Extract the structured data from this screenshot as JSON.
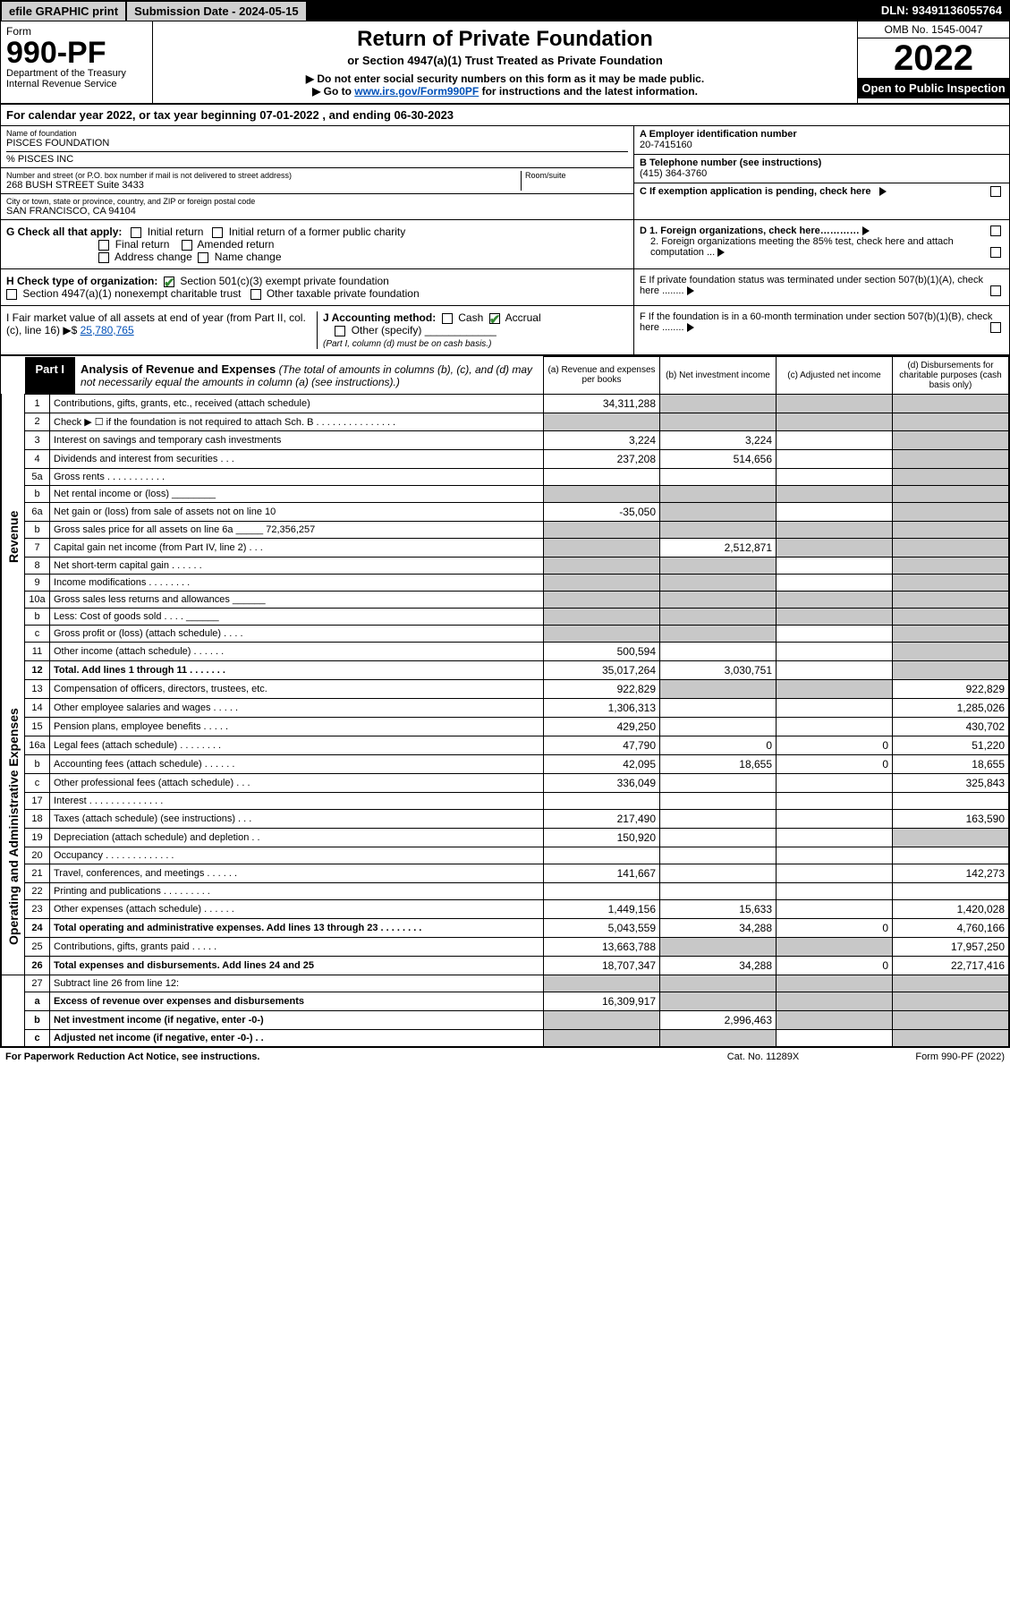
{
  "top": {
    "efile": "efile GRAPHIC print",
    "submission": "Submission Date - 2024-05-15",
    "dln": "DLN: 93491136055764"
  },
  "header": {
    "form_label": "Form",
    "form_number": "990-PF",
    "dept1": "Department of the Treasury",
    "dept2": "Internal Revenue Service",
    "title": "Return of Private Foundation",
    "subtitle": "or Section 4947(a)(1) Trust Treated as Private Foundation",
    "note1": "▶ Do not enter social security numbers on this form as it may be made public.",
    "note2_pre": "▶ Go to ",
    "note2_link": "www.irs.gov/Form990PF",
    "note2_post": " for instructions and the latest information.",
    "omb": "OMB No. 1545-0047",
    "year": "2022",
    "inspect": "Open to Public Inspection"
  },
  "cal": {
    "text1": "For calendar year 2022, or tax year beginning ",
    "begin": "07-01-2022",
    "text2": " , and ending ",
    "end": "06-30-2023"
  },
  "id": {
    "name_lbl": "Name of foundation",
    "name": "PISCES FOUNDATION",
    "care": "% PISCES INC",
    "addr_lbl": "Number and street (or P.O. box number if mail is not delivered to street address)",
    "addr": "268 BUSH STREET Suite 3433",
    "room_lbl": "Room/suite",
    "city_lbl": "City or town, state or province, country, and ZIP or foreign postal code",
    "city": "SAN FRANCISCO, CA  94104",
    "ein_lbl": "A Employer identification number",
    "ein": "20-7415160",
    "tel_lbl": "B Telephone number (see instructions)",
    "tel": "(415) 364-3760",
    "c_lbl": "C If exemption application is pending, check here"
  },
  "g": {
    "label": "G Check all that apply:",
    "o1": "Initial return",
    "o2": "Initial return of a former public charity",
    "o3": "Final return",
    "o4": "Amended return",
    "o5": "Address change",
    "o6": "Name change"
  },
  "d": {
    "d1": "D 1. Foreign organizations, check here…………",
    "d2": "2. Foreign organizations meeting the 85% test, check here and attach computation ..."
  },
  "h": {
    "label": "H Check type of organization:",
    "o1": "Section 501(c)(3) exempt private foundation",
    "o2": "Section 4947(a)(1) nonexempt charitable trust",
    "o3": "Other taxable private foundation"
  },
  "e": {
    "text": "E  If private foundation status was terminated under section 507(b)(1)(A), check here ........"
  },
  "i": {
    "label": "I Fair market value of all assets at end of year (from Part II, col. (c), line 16) ▶$ ",
    "value": "25,780,765"
  },
  "j": {
    "label": "J Accounting method:",
    "cash": "Cash",
    "accrual": "Accrual",
    "other": "Other (specify)",
    "note": "(Part I, column (d) must be on cash basis.)"
  },
  "f": {
    "text": "F  If the foundation is in a 60-month termination under section 507(b)(1)(B), check here ........"
  },
  "part1": {
    "tag": "Part I",
    "title": "Analysis of Revenue and Expenses",
    "paren": " (The total of amounts in columns (b), (c), and (d) may not necessarily equal the amounts in column (a) (see instructions).)",
    "col_a": "(a) Revenue and expenses per books",
    "col_b": "(b) Net investment income",
    "col_c": "(c) Adjusted net income",
    "col_d": "(d) Disbursements for charitable purposes (cash basis only)"
  },
  "side": {
    "rev": "Revenue",
    "exp": "Operating and Administrative Expenses"
  },
  "rows": [
    {
      "n": "1",
      "d": "Contributions, gifts, grants, etc., received (attach schedule)",
      "a": "34,311,288",
      "b_grey": true,
      "c_grey": true,
      "d_grey": true
    },
    {
      "n": "2",
      "d": "Check ▶ ☐ if the foundation is not required to attach Sch. B  .  .  .  .  .  .  .  .  .  .  .  .  .  .  .",
      "a_grey": true,
      "b_grey": true,
      "c_grey": true,
      "d_grey": true
    },
    {
      "n": "3",
      "d": "Interest on savings and temporary cash investments",
      "a": "3,224",
      "b": "3,224",
      "d_grey": true
    },
    {
      "n": "4",
      "d": "Dividends and interest from securities   .   .   .",
      "a": "237,208",
      "b": "514,656",
      "d_grey": true
    },
    {
      "n": "5a",
      "d": "Gross rents   .    .    .    .    .    .    .    .    .    .    .",
      "d_grey": true
    },
    {
      "n": "b",
      "d": "Net rental income or (loss) ________",
      "a_grey": true,
      "b_grey": true,
      "c_grey": true,
      "d_grey": true
    },
    {
      "n": "6a",
      "d": "Net gain or (loss) from sale of assets not on line 10",
      "a": "-35,050",
      "b_grey": true,
      "d_grey": true
    },
    {
      "n": "b",
      "d": "Gross sales price for all assets on line 6a _____ 72,356,257",
      "a_grey": true,
      "b_grey": true,
      "c_grey": true,
      "d_grey": true
    },
    {
      "n": "7",
      "d": "Capital gain net income (from Part IV, line 2)   .   .   .",
      "a_grey": true,
      "b": "2,512,871",
      "c_grey": true,
      "d_grey": true
    },
    {
      "n": "8",
      "d": "Net short-term capital gain   .    .    .    .    .    .",
      "a_grey": true,
      "b_grey": true,
      "d_grey": true
    },
    {
      "n": "9",
      "d": "Income modifications  .    .    .    .    .    .    .    .",
      "a_grey": true,
      "b_grey": true,
      "d_grey": true
    },
    {
      "n": "10a",
      "d": "Gross sales less returns and allowances  ______",
      "a_grey": true,
      "b_grey": true,
      "c_grey": true,
      "d_grey": true
    },
    {
      "n": "b",
      "d": "Less: Cost of goods sold   .   .   .   .   ______",
      "a_grey": true,
      "b_grey": true,
      "c_grey": true,
      "d_grey": true
    },
    {
      "n": "c",
      "d": "Gross profit or (loss) (attach schedule)   .   .   .   .",
      "a_grey": true,
      "b_grey": true,
      "d_grey": true
    },
    {
      "n": "11",
      "d": "Other income (attach schedule)   .   .   .   .   .   .",
      "a": "500,594",
      "d_grey": true
    },
    {
      "n": "12",
      "d": "Total. Add lines 1 through 11   .   .   .   .   .   .   .",
      "bold": true,
      "a": "35,017,264",
      "b": "3,030,751",
      "d_grey": true
    }
  ],
  "exp_rows": [
    {
      "n": "13",
      "d": "Compensation of officers, directors, trustees, etc.",
      "a": "922,829",
      "b_grey": true,
      "c_grey": true,
      "dd": "922,829"
    },
    {
      "n": "14",
      "d": "Other employee salaries and wages   .   .   .   .   .",
      "a": "1,306,313",
      "dd": "1,285,026"
    },
    {
      "n": "15",
      "d": "Pension plans, employee benefits  .    .    .    .    .",
      "a": "429,250",
      "dd": "430,702"
    },
    {
      "n": "16a",
      "d": "Legal fees (attach schedule)  .   .   .   .   .   .   .   .",
      "a": "47,790",
      "b": "0",
      "c": "0",
      "dd": "51,220"
    },
    {
      "n": "b",
      "d": "Accounting fees (attach schedule)  .   .   .   .   .   .",
      "a": "42,095",
      "b": "18,655",
      "c": "0",
      "dd": "18,655"
    },
    {
      "n": "c",
      "d": "Other professional fees (attach schedule)   .   .   .",
      "a": "336,049",
      "dd": "325,843"
    },
    {
      "n": "17",
      "d": "Interest  .   .   .   .   .   .   .   .   .   .   .   .   .   ."
    },
    {
      "n": "18",
      "d": "Taxes (attach schedule) (see instructions)   .   .   .",
      "a": "217,490",
      "dd": "163,590"
    },
    {
      "n": "19",
      "d": "Depreciation (attach schedule) and depletion   .   .",
      "a": "150,920",
      "d_grey": true
    },
    {
      "n": "20",
      "d": "Occupancy  .   .   .   .   .   .   .   .   .   .   .   .   ."
    },
    {
      "n": "21",
      "d": "Travel, conferences, and meetings  .   .   .   .   .   .",
      "a": "141,667",
      "dd": "142,273"
    },
    {
      "n": "22",
      "d": "Printing and publications  .   .   .   .   .   .   .   .   ."
    },
    {
      "n": "23",
      "d": "Other expenses (attach schedule)  .   .   .   .   .   .",
      "a": "1,449,156",
      "b": "15,633",
      "dd": "1,420,028"
    },
    {
      "n": "24",
      "d": "Total operating and administrative expenses. Add lines 13 through 23   .   .   .   .   .   .   .   .",
      "bold": true,
      "a": "5,043,559",
      "b": "34,288",
      "c": "0",
      "dd": "4,760,166"
    },
    {
      "n": "25",
      "d": "Contributions, gifts, grants paid    .    .    .    .    .",
      "a": "13,663,788",
      "b_grey": true,
      "c_grey": true,
      "dd": "17,957,250"
    },
    {
      "n": "26",
      "d": "Total expenses and disbursements. Add lines 24 and 25",
      "bold": true,
      "a": "18,707,347",
      "b": "34,288",
      "c": "0",
      "dd": "22,717,416"
    }
  ],
  "bottom_rows": [
    {
      "n": "27",
      "d": "Subtract line 26 from line 12:",
      "a_grey": true,
      "b_grey": true,
      "c_grey": true,
      "d_grey": true
    },
    {
      "n": "a",
      "d": "Excess of revenue over expenses and disbursements",
      "bold": true,
      "a": "16,309,917",
      "b_grey": true,
      "c_grey": true,
      "d_grey": true
    },
    {
      "n": "b",
      "d": "Net investment income (if negative, enter -0-)",
      "bold": true,
      "a_grey": true,
      "b": "2,996,463",
      "c_grey": true,
      "d_grey": true
    },
    {
      "n": "c",
      "d": "Adjusted net income (if negative, enter -0-)   .   .",
      "bold": true,
      "a_grey": true,
      "b_grey": true,
      "d_grey": true
    }
  ],
  "footer": {
    "left": "For Paperwork Reduction Act Notice, see instructions.",
    "mid": "Cat. No. 11289X",
    "right": "Form 990-PF (2022)"
  }
}
